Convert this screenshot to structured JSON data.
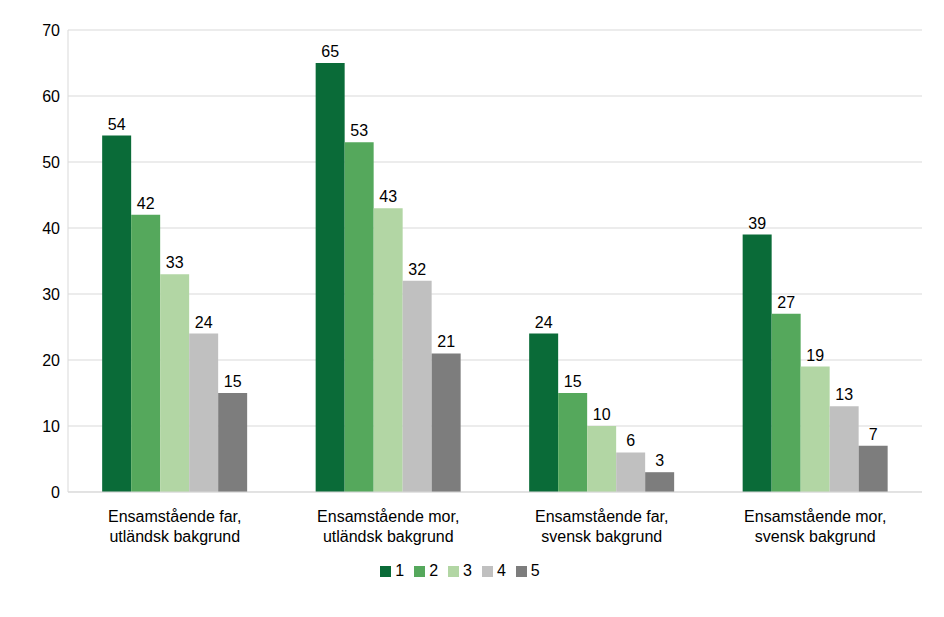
{
  "chart_data": {
    "type": "bar",
    "categories": [
      "Ensamstående far,\nutländsk bakgrund",
      "Ensamstående mor,\nutländsk bakgrund",
      "Ensamstående far,\nsvensk bakgrund",
      "Ensamstående mor,\nsvensk bakgrund"
    ],
    "series": [
      {
        "name": "1",
        "color": "#0a6b38",
        "values": [
          54,
          65,
          24,
          39
        ]
      },
      {
        "name": "2",
        "color": "#55a85c",
        "values": [
          42,
          53,
          15,
          27
        ]
      },
      {
        "name": "3",
        "color": "#b2d6a4",
        "values": [
          33,
          43,
          10,
          19
        ]
      },
      {
        "name": "4",
        "color": "#c0c0c0",
        "values": [
          24,
          32,
          6,
          13
        ]
      },
      {
        "name": "5",
        "color": "#7d7d7d",
        "values": [
          15,
          21,
          3,
          7
        ]
      }
    ],
    "ylim": [
      0,
      70
    ],
    "yticks": [
      0,
      10,
      20,
      30,
      40,
      50,
      60,
      70
    ],
    "grid": true,
    "legend": "bottom",
    "data_labels": true
  }
}
